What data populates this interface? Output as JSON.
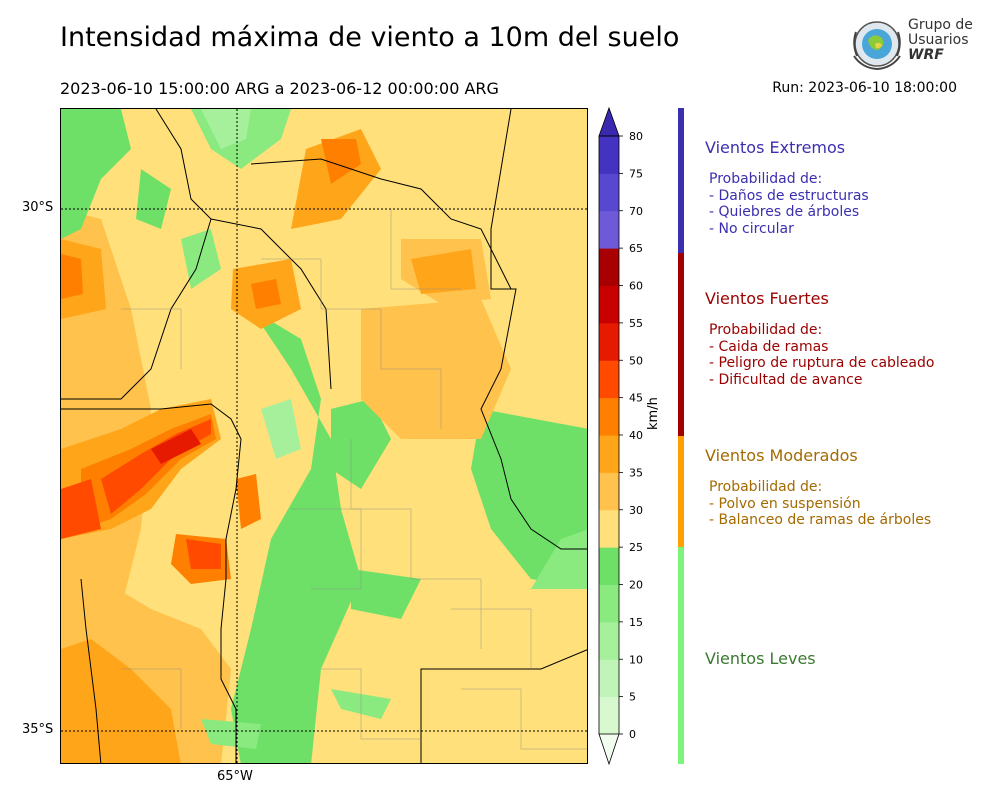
{
  "header": {
    "title": "Intensidad máxima de viento a 10m del suelo",
    "period": "2023-06-10 15:00:00 ARG  a  2023-06-12 00:00:00 ARG",
    "run": "Run: 2023-06-10 18:00:00"
  },
  "logo": {
    "line1": "Grupo de",
    "line2": "Usuarios",
    "line3": "WRF"
  },
  "map": {
    "lat_labels": [
      "30°S",
      "35°S"
    ],
    "lon_labels": [
      "65°W"
    ]
  },
  "colorbar": {
    "unit": "km/h",
    "ticks": [
      "0",
      "5",
      "10",
      "15",
      "20",
      "25",
      "30",
      "35",
      "40",
      "45",
      "50",
      "55",
      "60",
      "65",
      "70",
      "75",
      "80"
    ],
    "colors": [
      "#f2fdf0",
      "#d8f8d0",
      "#c0f4b8",
      "#a6f09c",
      "#8aea80",
      "#6ee068",
      "#ffe07a",
      "#ffc24d",
      "#ffa51a",
      "#ff7f00",
      "#ff4a00",
      "#e61a00",
      "#c80000",
      "#a80000",
      "#6e5ad8",
      "#5848d0",
      "#4433c0",
      "#3a28b0"
    ]
  },
  "categories": [
    {
      "title": "Vientos Extremos",
      "intro": "Probabilidad de:",
      "items": [
        "- Daños de estructuras",
        "- Quiebres de árboles",
        "- No circular"
      ],
      "color": "#3b2fb0",
      "bar_color": "#3b2fb0"
    },
    {
      "title": "Vientos Fuertes",
      "intro": "Probabilidad de:",
      "items": [
        "- Caida de ramas",
        "- Peligro de ruptura de cableado",
        "- Dificultad de avance"
      ],
      "color": "#9b0000",
      "bar_color": "#a00000"
    },
    {
      "title": "Vientos Moderados",
      "intro": "Probabilidad de:",
      "items": [
        "- Polvo en suspensión",
        "- Balanceo de ramas de árboles"
      ],
      "color": "#a46a00",
      "bar_color": "#ffa000"
    },
    {
      "title": "Vientos Leves",
      "intro": "",
      "items": [],
      "color": "#3a7a30",
      "bar_color": "#7df57a"
    }
  ]
}
